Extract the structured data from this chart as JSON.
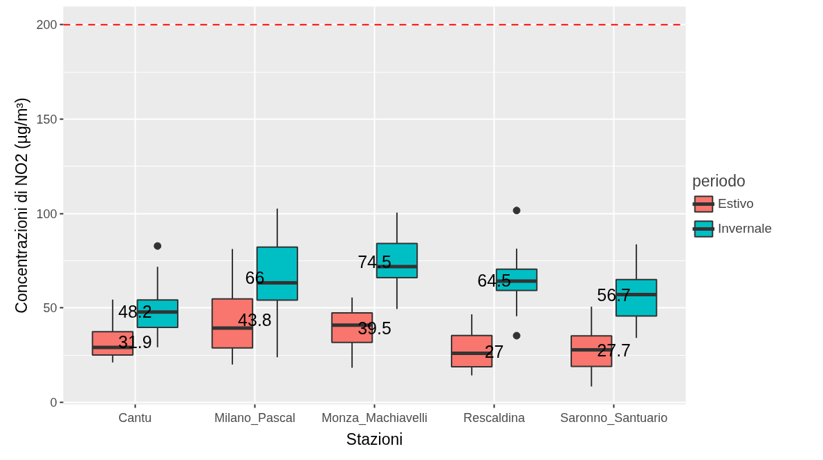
{
  "chart_data": {
    "type": "box",
    "xlabel": "Stazioni",
    "ylabel": "Concentrazioni di NO2 (µg/m³)",
    "legend_title": "periodo",
    "categories": [
      "Cantu",
      "Milano_Pascal",
      "Monza_Machiavelli",
      "Rescaldina",
      "Saronno_Santuario"
    ],
    "series": [
      {
        "name": "Estivo",
        "color": "#f8766d",
        "boxes": [
          {
            "low": 21.1,
            "q1": 25.1,
            "median": 29.1,
            "q3": 37.4,
            "high": 54.4
          },
          {
            "low": 20.0,
            "q1": 28.8,
            "median": 39.3,
            "q3": 54.8,
            "high": 81.2
          },
          {
            "low": 18.3,
            "q1": 31.7,
            "median": 40.9,
            "q3": 47.4,
            "high": 55.5
          },
          {
            "low": 14.3,
            "q1": 18.8,
            "median": 26.0,
            "q3": 35.4,
            "high": 46.6
          },
          {
            "low": 8.4,
            "q1": 19.0,
            "median": 27.8,
            "q3": 35.2,
            "high": 50.7
          }
        ]
      },
      {
        "name": "Invernale",
        "color": "#00bfc4",
        "boxes": [
          {
            "low": 29.2,
            "q1": 39.7,
            "median": 47.8,
            "q3": 54.2,
            "high": 71.8,
            "outliers": [
              82.8
            ]
          },
          {
            "low": 23.9,
            "q1": 54.1,
            "median": 63.3,
            "q3": 82.2,
            "high": 102.6
          },
          {
            "low": 49.4,
            "q1": 66.0,
            "median": 71.9,
            "q3": 84.1,
            "high": 100.5
          },
          {
            "low": 45.6,
            "q1": 59.3,
            "median": 64.2,
            "q3": 70.5,
            "high": 81.4,
            "outliers": [
              101.6,
              35.3
            ]
          },
          {
            "low": 34.1,
            "q1": 45.7,
            "median": 57.1,
            "q3": 65.0,
            "high": 83.7
          }
        ]
      }
    ],
    "ylim": [
      -1.1,
      209.6
    ],
    "yticks": [
      0,
      50,
      100,
      150,
      200
    ],
    "ref_lines": [
      {
        "axis": "y",
        "value": 200,
        "color": "#ff0000",
        "line_style": "dashed"
      }
    ],
    "annotations": [
      {
        "text": "31.9",
        "x": "Cantu",
        "y": 31.9
      },
      {
        "text": "48.2",
        "x": "Cantu",
        "y": 48.2
      },
      {
        "text": "43.8",
        "x": "Milano_Pascal",
        "y": 43.8
      },
      {
        "text": "66",
        "x": "Milano_Pascal",
        "y": 66
      },
      {
        "text": "39.5",
        "x": "Monza_Machiavelli",
        "y": 39.5
      },
      {
        "text": "74.5",
        "x": "Monza_Machiavelli",
        "y": 74.5
      },
      {
        "text": "27",
        "x": "Rescaldina",
        "y": 27
      },
      {
        "text": "64.5",
        "x": "Rescaldina",
        "y": 64.5
      },
      {
        "text": "27.7",
        "x": "Saronno_Santuario",
        "y": 27.7
      },
      {
        "text": "56.7",
        "x": "Saronno_Santuario",
        "y": 56.7
      }
    ],
    "grid": true,
    "legend": "right"
  }
}
